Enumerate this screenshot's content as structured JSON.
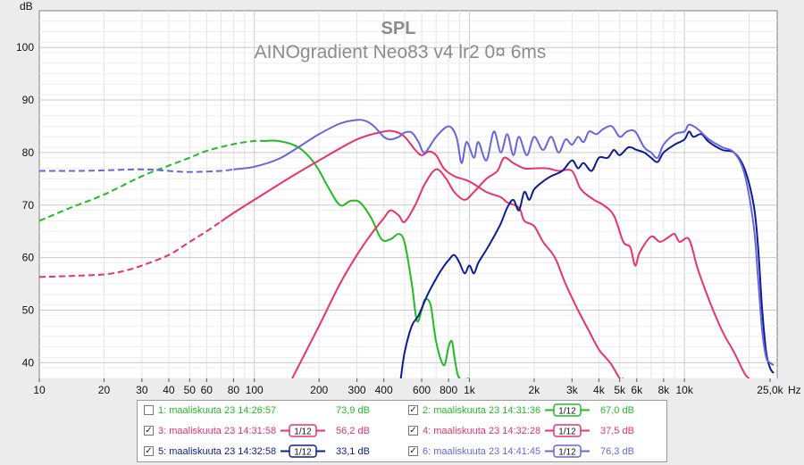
{
  "chart_data": {
    "type": "line",
    "title": "SPL",
    "subtitle": "AINOgradient Neo83 v4 lr2 0¤ 6ms",
    "ylabel": "dB",
    "xunit": "Hz",
    "xscale": "log",
    "xlim": [
      10,
      27000
    ],
    "ylim": [
      37,
      107
    ],
    "grid": true,
    "legend_position": "bottom",
    "y_ticks": [
      40,
      50,
      60,
      70,
      80,
      90,
      100
    ],
    "x_ticks": [
      {
        "value": 10,
        "label": "10"
      },
      {
        "value": 20,
        "label": "20"
      },
      {
        "value": 30,
        "label": "30"
      },
      {
        "value": 40,
        "label": "40"
      },
      {
        "value": 50,
        "label": "50"
      },
      {
        "value": 60,
        "label": "60"
      },
      {
        "value": 80,
        "label": "80"
      },
      {
        "value": 100,
        "label": "100"
      },
      {
        "value": 200,
        "label": "200"
      },
      {
        "value": 300,
        "label": "300"
      },
      {
        "value": 400,
        "label": "400"
      },
      {
        "value": 600,
        "label": "600"
      },
      {
        "value": 800,
        "label": "800"
      },
      {
        "value": 1000,
        "label": "1k"
      },
      {
        "value": 2000,
        "label": "2k"
      },
      {
        "value": 3000,
        "label": "3k"
      },
      {
        "value": 4000,
        "label": "4k"
      },
      {
        "value": 5000,
        "label": "5k"
      },
      {
        "value": 6000,
        "label": "6k"
      },
      {
        "value": 8000,
        "label": "8k"
      },
      {
        "value": 10000,
        "label": "10k"
      },
      {
        "value": 25000,
        "label": "25,0k"
      }
    ],
    "series": [
      {
        "id": 2,
        "color": "#22bb22",
        "dash_below": 110,
        "points": [
          [
            10,
            67
          ],
          [
            14,
            69.5
          ],
          [
            20,
            72
          ],
          [
            30,
            75.5
          ],
          [
            40,
            77.5
          ],
          [
            50,
            79
          ],
          [
            60,
            80.3
          ],
          [
            80,
            81.6
          ],
          [
            100,
            82.2
          ],
          [
            130,
            82.2
          ],
          [
            160,
            81
          ],
          [
            190,
            78
          ],
          [
            220,
            73.5
          ],
          [
            250,
            70
          ],
          [
            280,
            70.8
          ],
          [
            310,
            70.5
          ],
          [
            350,
            67.5
          ],
          [
            390,
            63.5
          ],
          [
            430,
            63.5
          ],
          [
            470,
            64.5
          ],
          [
            500,
            62.8
          ],
          [
            540,
            55
          ],
          [
            570,
            48
          ],
          [
            600,
            50
          ],
          [
            620,
            52
          ],
          [
            660,
            51
          ],
          [
            700,
            44
          ],
          [
            760,
            39.5
          ],
          [
            800,
            43
          ],
          [
            830,
            44
          ],
          [
            860,
            40
          ],
          [
            900,
            37
          ],
          [
            1000,
            37
          ]
        ]
      },
      {
        "id": 3,
        "color": "#e8336c",
        "dash_below": 70,
        "points": [
          [
            10,
            56.3
          ],
          [
            14,
            56.5
          ],
          [
            20,
            56.8
          ],
          [
            25,
            57.5
          ],
          [
            30,
            58.5
          ],
          [
            40,
            60.5
          ],
          [
            50,
            63
          ],
          [
            60,
            65
          ],
          [
            80,
            68.5
          ],
          [
            100,
            71
          ],
          [
            150,
            75.5
          ],
          [
            200,
            78.5
          ],
          [
            300,
            82.5
          ],
          [
            400,
            84
          ],
          [
            450,
            84
          ],
          [
            500,
            83
          ],
          [
            560,
            80.5
          ],
          [
            600,
            79.5
          ],
          [
            650,
            80.2
          ],
          [
            700,
            79.5
          ],
          [
            760,
            77
          ],
          [
            850,
            75.5
          ],
          [
            1000,
            74.5
          ],
          [
            1200,
            72.5
          ],
          [
            1400,
            71.5
          ],
          [
            1500,
            70.5
          ],
          [
            1700,
            69.5
          ],
          [
            1800,
            67
          ],
          [
            2000,
            66
          ],
          [
            2200,
            63
          ],
          [
            2500,
            60
          ],
          [
            2800,
            55
          ],
          [
            3200,
            50
          ],
          [
            3600,
            46
          ],
          [
            4000,
            42.5
          ],
          [
            4300,
            41
          ],
          [
            4600,
            39.5
          ],
          [
            5000,
            37
          ],
          [
            5200,
            37
          ]
        ]
      },
      {
        "id": 4,
        "color": "#e8336c",
        "dash_below": 0,
        "points": [
          [
            150,
            37
          ],
          [
            200,
            47
          ],
          [
            250,
            55
          ],
          [
            300,
            60.5
          ],
          [
            350,
            64.5
          ],
          [
            400,
            67.5
          ],
          [
            430,
            69
          ],
          [
            470,
            68
          ],
          [
            500,
            66.8
          ],
          [
            560,
            70
          ],
          [
            620,
            74
          ],
          [
            700,
            76.8
          ],
          [
            780,
            75
          ],
          [
            850,
            72.5
          ],
          [
            950,
            71
          ],
          [
            1050,
            72.5
          ],
          [
            1200,
            75
          ],
          [
            1350,
            76.5
          ],
          [
            1450,
            79
          ],
          [
            1600,
            78
          ],
          [
            1800,
            77
          ],
          [
            2000,
            77
          ],
          [
            2300,
            77
          ],
          [
            2600,
            76.5
          ],
          [
            3000,
            76.5
          ],
          [
            3300,
            73
          ],
          [
            3800,
            71
          ],
          [
            4200,
            70
          ],
          [
            4700,
            68
          ],
          [
            5200,
            63
          ],
          [
            5600,
            62
          ],
          [
            5900,
            58.5
          ],
          [
            6200,
            61
          ],
          [
            7000,
            64
          ],
          [
            7700,
            63
          ],
          [
            8500,
            64
          ],
          [
            9000,
            64.5
          ],
          [
            9500,
            63
          ],
          [
            10500,
            63.5
          ],
          [
            11500,
            58
          ],
          [
            13000,
            52
          ],
          [
            15000,
            46
          ],
          [
            17000,
            42
          ],
          [
            19000,
            38
          ],
          [
            20000,
            37
          ]
        ]
      },
      {
        "id": 5,
        "color": "#0c1c92",
        "dash_below": 0,
        "points": [
          [
            480,
            37
          ],
          [
            500,
            42
          ],
          [
            540,
            47
          ],
          [
            580,
            49
          ],
          [
            640,
            53
          ],
          [
            700,
            56
          ],
          [
            750,
            58
          ],
          [
            800,
            59.5
          ],
          [
            850,
            60.5
          ],
          [
            900,
            59
          ],
          [
            950,
            57
          ],
          [
            1000,
            58.5
          ],
          [
            1050,
            57
          ],
          [
            1100,
            59
          ],
          [
            1200,
            61.5
          ],
          [
            1300,
            64
          ],
          [
            1400,
            66.5
          ],
          [
            1500,
            69.5
          ],
          [
            1600,
            71
          ],
          [
            1700,
            69
          ],
          [
            1800,
            72.5
          ],
          [
            1900,
            71
          ],
          [
            2000,
            73
          ],
          [
            2200,
            74.5
          ],
          [
            2400,
            75.5
          ],
          [
            2700,
            76.5
          ],
          [
            3000,
            78.5
          ],
          [
            3200,
            77
          ],
          [
            3400,
            78
          ],
          [
            3700,
            76.5
          ],
          [
            4000,
            79
          ],
          [
            4400,
            79
          ],
          [
            4700,
            80.5
          ],
          [
            5000,
            79.5
          ],
          [
            5500,
            81
          ],
          [
            6000,
            80.5
          ],
          [
            6500,
            80
          ],
          [
            7000,
            79
          ],
          [
            7500,
            78.2
          ],
          [
            8000,
            80
          ],
          [
            9000,
            81.5
          ],
          [
            10000,
            82.5
          ],
          [
            10500,
            84
          ],
          [
            11000,
            83
          ],
          [
            12000,
            83.5
          ],
          [
            13000,
            82
          ],
          [
            15000,
            80.5
          ],
          [
            17000,
            80
          ],
          [
            19000,
            77
          ],
          [
            21000,
            70
          ],
          [
            22000,
            62
          ],
          [
            23000,
            50
          ],
          [
            24000,
            42
          ],
          [
            25000,
            39
          ],
          [
            26000,
            38
          ]
        ]
      },
      {
        "id": 6,
        "color": "#6666dd",
        "dash_below": 80,
        "points": [
          [
            10,
            76.5
          ],
          [
            15,
            76.5
          ],
          [
            20,
            76.6
          ],
          [
            30,
            76.8
          ],
          [
            40,
            76.5
          ],
          [
            50,
            76.3
          ],
          [
            70,
            76.5
          ],
          [
            100,
            77.3
          ],
          [
            130,
            78.8
          ],
          [
            160,
            81
          ],
          [
            200,
            83.5
          ],
          [
            250,
            85.5
          ],
          [
            300,
            86.2
          ],
          [
            330,
            86
          ],
          [
            360,
            85
          ],
          [
            400,
            83
          ],
          [
            430,
            82.5
          ],
          [
            470,
            83
          ],
          [
            500,
            83.8
          ],
          [
            540,
            83.8
          ],
          [
            580,
            82
          ],
          [
            620,
            80
          ],
          [
            700,
            83
          ],
          [
            800,
            85
          ],
          [
            870,
            83
          ],
          [
            920,
            78
          ],
          [
            970,
            82
          ],
          [
            1050,
            79
          ],
          [
            1100,
            82
          ],
          [
            1200,
            78.5
          ],
          [
            1300,
            84
          ],
          [
            1400,
            80
          ],
          [
            1500,
            83.5
          ],
          [
            1600,
            79.5
          ],
          [
            1700,
            83
          ],
          [
            1850,
            79.5
          ],
          [
            2000,
            83
          ],
          [
            2200,
            80.5
          ],
          [
            2400,
            83
          ],
          [
            2600,
            80
          ],
          [
            2800,
            82.5
          ],
          [
            3000,
            81.5
          ],
          [
            3200,
            83
          ],
          [
            3400,
            82
          ],
          [
            3600,
            84
          ],
          [
            3900,
            83.5
          ],
          [
            4200,
            84.5
          ],
          [
            4600,
            85
          ],
          [
            5000,
            83
          ],
          [
            5400,
            84
          ],
          [
            5900,
            84
          ],
          [
            6500,
            81
          ],
          [
            7000,
            80
          ],
          [
            7500,
            79
          ],
          [
            8000,
            81.5
          ],
          [
            9000,
            83.5
          ],
          [
            10000,
            84
          ],
          [
            10500,
            85.3
          ],
          [
            11500,
            84.5
          ],
          [
            13000,
            82.5
          ],
          [
            15000,
            81
          ],
          [
            17000,
            80
          ],
          [
            19000,
            76
          ],
          [
            21000,
            66
          ],
          [
            22000,
            56
          ],
          [
            23000,
            46
          ],
          [
            24000,
            41
          ],
          [
            25000,
            40
          ],
          [
            26000,
            39.5
          ]
        ]
      }
    ]
  },
  "legend": {
    "entries": [
      {
        "id": 1,
        "checked": false,
        "label": "1: maaliskuuta 23 14:26:57",
        "value": "73,9 dB",
        "smoothing": "",
        "color": "#22bb22"
      },
      {
        "id": 2,
        "checked": true,
        "label": "2: maaliskuuta 23 14:31:36",
        "value": "67,0 dB",
        "smoothing": "1/12",
        "color": "#22bb22"
      },
      {
        "id": 3,
        "checked": true,
        "label": "3: maaliskuuta 23 14:31:58",
        "value": "56,2 dB",
        "smoothing": "1/12",
        "color": "#e8336c"
      },
      {
        "id": 4,
        "checked": true,
        "label": "4: maaliskuuta 23 14:32:28",
        "value": "37,5 dB",
        "smoothing": "1/12",
        "color": "#e8336c"
      },
      {
        "id": 5,
        "checked": true,
        "label": "5: maaliskuuta 23 14:32:58",
        "value": "33,1 dB",
        "smoothing": "1/12",
        "color": "#0c1c92"
      },
      {
        "id": 6,
        "checked": true,
        "label": "6: maaliskuuta 23 14:41:45",
        "value": "76,3 dB",
        "smoothing": "1/12",
        "color": "#6666dd"
      }
    ]
  }
}
